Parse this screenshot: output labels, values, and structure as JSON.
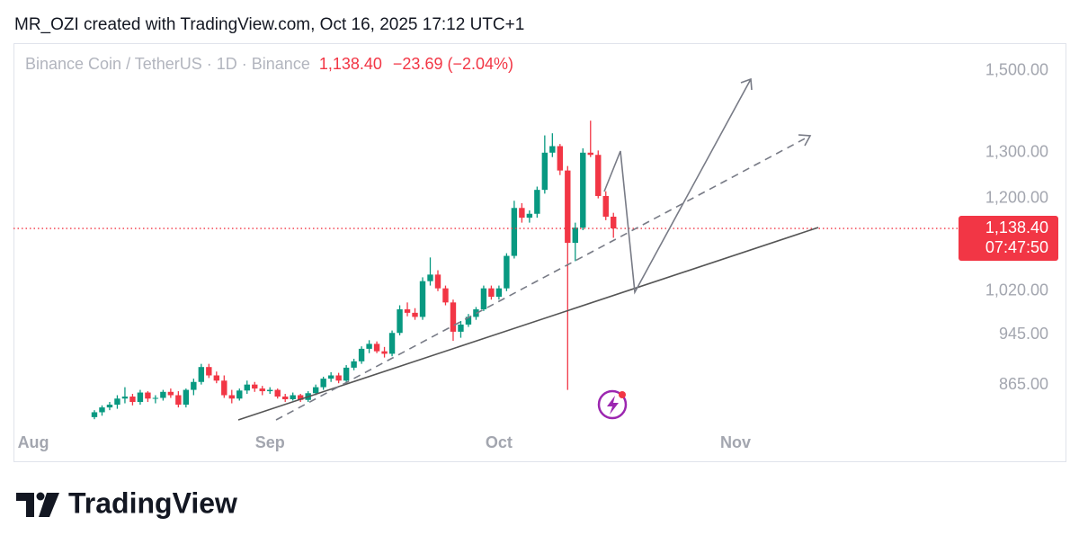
{
  "header": "MR_OZI created with TradingView.com, Oct 16, 2025 17:12 UTC+1",
  "footer_brand": "TradingView",
  "chart_data": {
    "type": "candlestick",
    "title": "Binance Coin / TetherUS · 1D · Binance",
    "current_price": {
      "value": 1138.4,
      "label": "1,138.40"
    },
    "change": "−23.69 (−2.04%)",
    "countdown": "07:47:50",
    "log": true,
    "up_color": "#089981",
    "down_color": "#f23645",
    "ylim": [
      800,
      1570
    ],
    "yticks": [
      {
        "value": 1500,
        "label": "1,500.00"
      },
      {
        "value": 1300,
        "label": "1,300.00"
      },
      {
        "value": 1200,
        "label": "1,200.00"
      },
      {
        "value": 1020,
        "label": "1,020.00"
      },
      {
        "value": 945,
        "label": "945.00"
      },
      {
        "value": 865,
        "label": "865.00"
      }
    ],
    "xlim": [
      -2.6,
      120.5
    ],
    "xticks": [
      {
        "value": 0,
        "label": "Aug"
      },
      {
        "value": 31,
        "label": "Sep"
      },
      {
        "value": 61,
        "label": "Oct"
      },
      {
        "value": 92,
        "label": "Nov"
      }
    ],
    "x": [
      8,
      9,
      10,
      11,
      12,
      13,
      14,
      15,
      16,
      17,
      18,
      19,
      20,
      21,
      22,
      23,
      24,
      25,
      26,
      27,
      28,
      29,
      30,
      31,
      32,
      33,
      34,
      35,
      36,
      37,
      38,
      39,
      40,
      41,
      42,
      43,
      44,
      45,
      46,
      47,
      48,
      49,
      50,
      51,
      52,
      53,
      54,
      55,
      56,
      57,
      58,
      59,
      60,
      61,
      62,
      63,
      64,
      65,
      66,
      67,
      68,
      69,
      70,
      71,
      72,
      73,
      74,
      75,
      76
    ],
    "open": [
      818,
      825,
      832,
      836,
      845,
      848,
      840,
      854,
      845,
      846,
      855,
      850,
      836,
      858,
      870,
      893,
      880,
      872,
      850,
      845,
      857,
      866,
      860,
      856,
      858,
      848,
      844,
      850,
      843,
      853,
      862,
      875,
      880,
      872,
      892,
      902,
      922,
      930,
      918,
      914,
      948,
      988,
      982,
      975,
      1038,
      1050,
      1025,
      1000,
      950,
      962,
      975,
      988,
      1025,
      1010,
      1025,
      1085,
      1180,
      1160,
      1168,
      1218,
      1300,
      1315,
      1260,
      1110,
      1140,
      1300,
      1295,
      1205,
      1162.09
    ],
    "high": [
      828,
      835,
      840,
      850,
      862,
      852,
      858,
      856,
      850,
      858,
      860,
      856,
      860,
      875,
      898,
      898,
      886,
      880,
      858,
      860,
      872,
      870,
      864,
      862,
      860,
      852,
      854,
      852,
      856,
      866,
      878,
      885,
      884,
      896,
      906,
      926,
      936,
      934,
      925,
      952,
      995,
      1000,
      990,
      1045,
      1082,
      1058,
      1030,
      1005,
      968,
      980,
      992,
      1030,
      1030,
      1030,
      1090,
      1195,
      1190,
      1175,
      1225,
      1340,
      1345,
      1320,
      1270,
      1150,
      1310,
      1375,
      1305,
      1215,
      1170
    ],
    "low": [
      815,
      820,
      828,
      830,
      838,
      835,
      836,
      840,
      838,
      842,
      846,
      832,
      832,
      850,
      866,
      876,
      868,
      846,
      838,
      842,
      852,
      855,
      850,
      852,
      845,
      840,
      842,
      840,
      840,
      850,
      858,
      870,
      868,
      870,
      888,
      898,
      915,
      915,
      908,
      910,
      944,
      976,
      970,
      970,
      1030,
      1020,
      995,
      935,
      940,
      958,
      970,
      985,
      1005,
      1005,
      1020,
      1080,
      1150,
      1150,
      1160,
      1210,
      1290,
      1250,
      858,
      1075,
      1135,
      1290,
      1200,
      1155,
      1120
    ],
    "close": [
      825,
      832,
      836,
      845,
      848,
      840,
      854,
      845,
      846,
      855,
      850,
      836,
      858,
      870,
      893,
      880,
      872,
      850,
      845,
      857,
      866,
      860,
      856,
      858,
      848,
      844,
      850,
      843,
      853,
      862,
      875,
      880,
      872,
      892,
      902,
      922,
      930,
      918,
      914,
      948,
      988,
      982,
      975,
      1038,
      1050,
      1025,
      1000,
      950,
      962,
      975,
      988,
      1025,
      1010,
      1025,
      1085,
      1180,
      1160,
      1168,
      1218,
      1300,
      1315,
      1260,
      1110,
      1140,
      1300,
      1295,
      1205,
      1162.09,
      1138.4
    ]
  }
}
